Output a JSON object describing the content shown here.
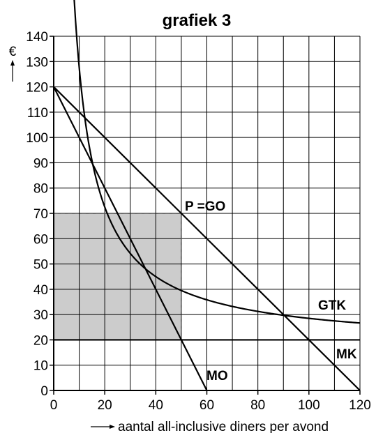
{
  "chart_data": {
    "type": "line",
    "title": "grafiek 3",
    "ylabel": "€",
    "xlabel": "aantal all-inclusive diners per avond",
    "xlim": [
      0,
      120
    ],
    "ylim": [
      0,
      140
    ],
    "xticks": [
      0,
      20,
      40,
      60,
      80,
      100,
      120
    ],
    "yticks": [
      0,
      10,
      20,
      30,
      40,
      50,
      60,
      70,
      80,
      90,
      100,
      110,
      120,
      130,
      140
    ],
    "grid": true,
    "series": [
      {
        "name": "P =GO",
        "x": [
          0,
          120
        ],
        "y": [
          120,
          0
        ]
      },
      {
        "name": "MO",
        "x": [
          0,
          60
        ],
        "y": [
          120,
          0
        ]
      },
      {
        "name": "MK",
        "x": [
          0,
          120
        ],
        "y": [
          20,
          20
        ]
      },
      {
        "name": "GTK",
        "x": [
          8,
          10,
          15,
          20,
          25,
          30,
          40,
          50,
          60,
          70,
          80,
          90,
          100,
          110,
          120
        ],
        "y": [
          132,
          110,
          73.3,
          60,
          52,
          46.7,
          40,
          36,
          33.3,
          31.4,
          30,
          28.9,
          28,
          27.3,
          26.7
        ]
      }
    ],
    "shaded_region": {
      "x": [
        0,
        50
      ],
      "y": [
        20,
        70
      ],
      "color": "#cccccc"
    },
    "dashed_guides": [
      {
        "from": [
          0,
          70
        ],
        "to": [
          50,
          70
        ]
      },
      {
        "from": [
          50,
          20
        ],
        "to": [
          50,
          70
        ]
      }
    ]
  }
}
